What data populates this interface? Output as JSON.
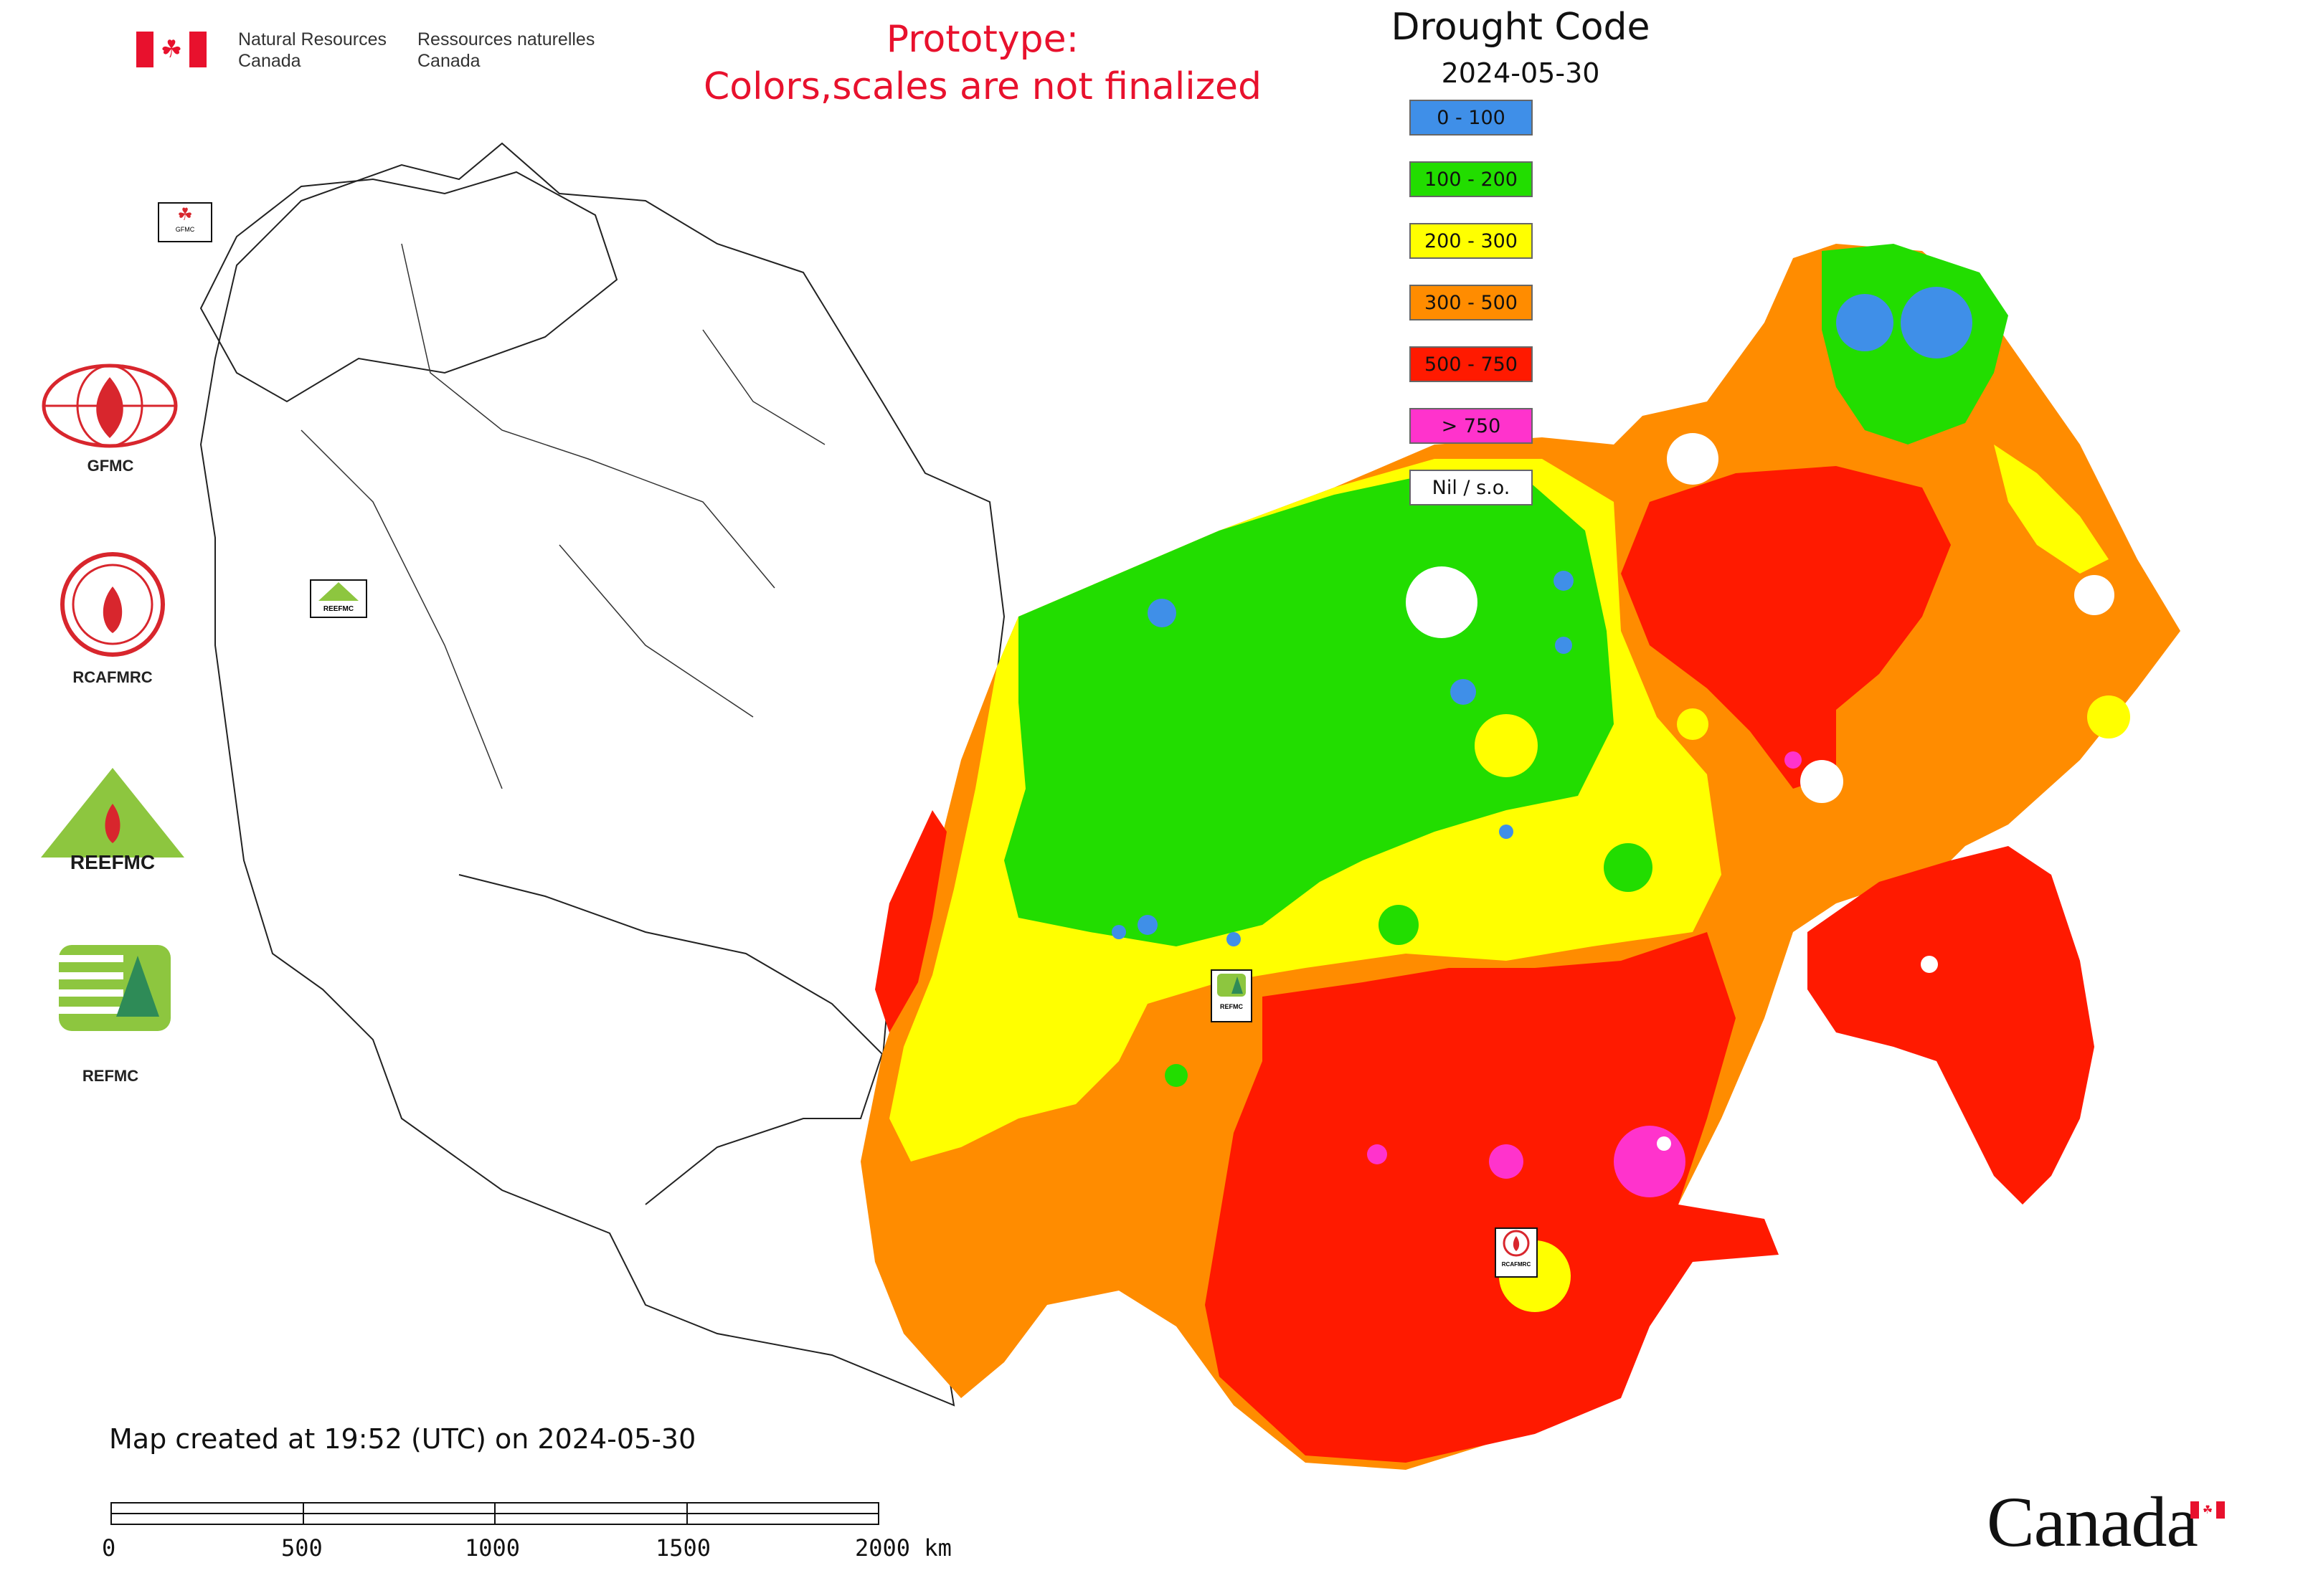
{
  "header": {
    "org_en_line1": "Natural Resources",
    "org_en_line2": "Canada",
    "org_fr_line1": "Ressources naturelles",
    "org_fr_line2": "Canada"
  },
  "prototype_notice": {
    "line1": "Prototype:",
    "line2": "Colors,scales are not finalized",
    "color": "#e8112d"
  },
  "legend": {
    "title": "Drought Code",
    "date": "2024-05-30",
    "items": [
      {
        "label": "0 - 100",
        "color": "#3f8fe8"
      },
      {
        "label": "100 - 200",
        "color": "#22dd00"
      },
      {
        "label": "200 - 300",
        "color": "#ffff00"
      },
      {
        "label": "300 - 500",
        "color": "#ff8c00"
      },
      {
        "label": "500 - 750",
        "color": "#ff1a00"
      },
      {
        "label": "> 750",
        "color": "#ff33cc"
      },
      {
        "label": "Nil / s.o.",
        "color": "#ffffff"
      }
    ]
  },
  "organizations": [
    {
      "label": "GFMC",
      "icon": "gfmc-logo"
    },
    {
      "label": "RCAFMRC",
      "icon": "rcafmrc-logo"
    },
    {
      "label": "REEFMC",
      "icon": "reefmc-logo"
    },
    {
      "label": "REFMC",
      "icon": "refmc-logo"
    }
  ],
  "map_markers": {
    "gfmc": "GFMC",
    "reefmc": "REEFMC",
    "refmc": "REFMC",
    "rcafmrc": "RCAFMRC"
  },
  "map_created": "Map created at 19:52 (UTC) on 2024-05-30",
  "scale_bar": {
    "labels": [
      "0",
      "500",
      "1000",
      "1500",
      "2000 km"
    ]
  },
  "wordmark": "Canada"
}
